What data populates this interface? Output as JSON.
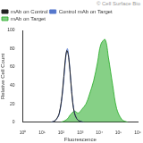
{
  "chart_data": {
    "type": "line",
    "annotation": "© Cell Surface Bio",
    "x_label": "Fluorescence",
    "y_label": "Relative Cell Count",
    "log": "x",
    "grid": false,
    "legend": "upper left",
    "xlim": [
      1,
      1000000
    ],
    "xticks": [
      {
        "value": 1,
        "label": "10⁰"
      },
      {
        "value": 10,
        "label": "10¹"
      },
      {
        "value": 100,
        "label": "10²"
      },
      {
        "value": 1000,
        "label": "10³"
      },
      {
        "value": 10000,
        "label": "10⁴"
      },
      {
        "value": 100000,
        "label": "10⁵"
      },
      {
        "value": 1000000,
        "label": "10⁶"
      }
    ],
    "ylim": [
      0,
      100
    ],
    "yticks": [
      0,
      20,
      40,
      60,
      80,
      100
    ],
    "series": [
      {
        "name": "mAb on Target",
        "type": "area",
        "color": "#22aa22",
        "x": [
          100,
          200,
          300,
          500,
          800,
          1200,
          2000,
          3000,
          5000,
          8000,
          12000,
          20000,
          30000,
          50000,
          80000,
          150000,
          300000
        ],
        "values": [
          0,
          3,
          8,
          12,
          10,
          14,
          20,
          30,
          45,
          65,
          85,
          90,
          70,
          40,
          15,
          3,
          0
        ]
      },
      {
        "name": "mAb on Control",
        "type": "line",
        "color": "#222222",
        "x": [
          30,
          50,
          80,
          120,
          160,
          200,
          250,
          320,
          400,
          500,
          650,
          800,
          1000,
          1500
        ],
        "values": [
          0,
          2,
          10,
          35,
          65,
          78,
          70,
          45,
          22,
          10,
          4,
          2,
          1,
          0
        ]
      },
      {
        "name": "Control mAb on Target",
        "type": "line",
        "color": "#5577cc",
        "x": [
          30,
          50,
          80,
          120,
          160,
          210,
          260,
          330,
          420,
          520,
          650,
          800,
          1000,
          1500
        ],
        "values": [
          0,
          2,
          9,
          33,
          62,
          80,
          68,
          42,
          20,
          9,
          4,
          2,
          1,
          0
        ]
      }
    ]
  }
}
